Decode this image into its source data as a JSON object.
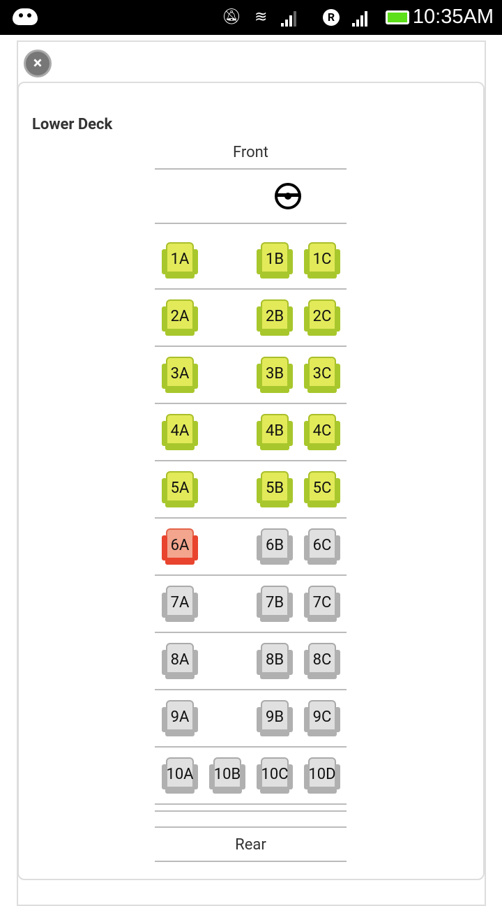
{
  "status_bar": {
    "time": "10:35AM",
    "icons": [
      "android-debug-icon",
      "mute-icon",
      "wifi-icon",
      "signal-icon",
      "roaming-icon",
      "signal-icon",
      "battery-icon"
    ],
    "battery_color": "#5ddf1a"
  },
  "deck": {
    "title": "Lower Deck",
    "front_label": "Front",
    "rear_label": "Rear"
  },
  "legend_colors": {
    "available": "#d8e24a",
    "booked": "#e8442e",
    "unavailable": "#d0d0d0"
  },
  "rows": [
    [
      {
        "id": "1A",
        "col": 0,
        "status": "available"
      },
      {
        "id": "1B",
        "col": 2,
        "status": "available"
      },
      {
        "id": "1C",
        "col": 3,
        "status": "available"
      }
    ],
    [
      {
        "id": "2A",
        "col": 0,
        "status": "available"
      },
      {
        "id": "2B",
        "col": 2,
        "status": "available"
      },
      {
        "id": "2C",
        "col": 3,
        "status": "available"
      }
    ],
    [
      {
        "id": "3A",
        "col": 0,
        "status": "available"
      },
      {
        "id": "3B",
        "col": 2,
        "status": "available"
      },
      {
        "id": "3C",
        "col": 3,
        "status": "available"
      }
    ],
    [
      {
        "id": "4A",
        "col": 0,
        "status": "available"
      },
      {
        "id": "4B",
        "col": 2,
        "status": "available"
      },
      {
        "id": "4C",
        "col": 3,
        "status": "available"
      }
    ],
    [
      {
        "id": "5A",
        "col": 0,
        "status": "available"
      },
      {
        "id": "5B",
        "col": 2,
        "status": "available"
      },
      {
        "id": "5C",
        "col": 3,
        "status": "available"
      }
    ],
    [
      {
        "id": "6A",
        "col": 0,
        "status": "booked"
      },
      {
        "id": "6B",
        "col": 2,
        "status": "unavailable"
      },
      {
        "id": "6C",
        "col": 3,
        "status": "unavailable"
      }
    ],
    [
      {
        "id": "7A",
        "col": 0,
        "status": "unavailable"
      },
      {
        "id": "7B",
        "col": 2,
        "status": "unavailable"
      },
      {
        "id": "7C",
        "col": 3,
        "status": "unavailable"
      }
    ],
    [
      {
        "id": "8A",
        "col": 0,
        "status": "unavailable"
      },
      {
        "id": "8B",
        "col": 2,
        "status": "unavailable"
      },
      {
        "id": "8C",
        "col": 3,
        "status": "unavailable"
      }
    ],
    [
      {
        "id": "9A",
        "col": 0,
        "status": "unavailable"
      },
      {
        "id": "9B",
        "col": 2,
        "status": "unavailable"
      },
      {
        "id": "9C",
        "col": 3,
        "status": "unavailable"
      }
    ],
    [
      {
        "id": "10A",
        "col": 0,
        "status": "unavailable"
      },
      {
        "id": "10B",
        "col": 1,
        "status": "unavailable"
      },
      {
        "id": "10C",
        "col": 2,
        "status": "unavailable"
      },
      {
        "id": "10D",
        "col": 3,
        "status": "unavailable"
      }
    ]
  ]
}
